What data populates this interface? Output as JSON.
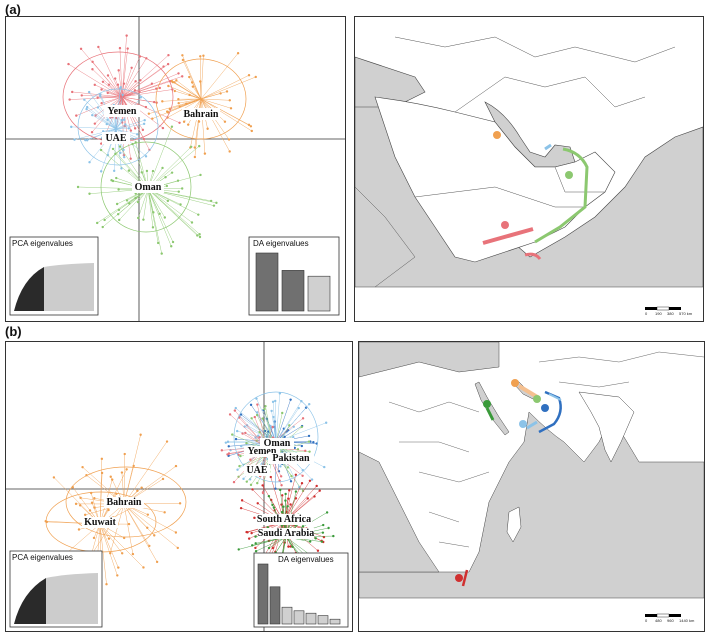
{
  "panels": [
    {
      "label": "(a)",
      "group_labels": [
        "Yemen",
        "Bahrain",
        "UAE",
        "Oman"
      ],
      "pca_inset_title": "PCA eigenvalues",
      "da_inset_title": "DA eigenvalues",
      "da_bars_fraction": [
        1.0,
        0.7,
        0.6
      ],
      "map_scale_labels": [
        "0",
        "190",
        "380",
        "570 km"
      ],
      "colors": {
        "Yemen": "#e8737a",
        "Bahrain": "#f0a050",
        "UAE": "#8cc3e8",
        "Oman": "#8cc870"
      }
    },
    {
      "label": "(b)",
      "group_labels": [
        "Oman",
        "Yemen",
        "Pakistan",
        "UAE",
        "Bahrain",
        "Kuwait",
        "South Africa",
        "Saudi Arabia"
      ],
      "pca_inset_title": "PCA eigenvalues",
      "da_inset_title": "DA eigenvalues",
      "da_bars_fraction": [
        1.0,
        0.62,
        0.28,
        0.22,
        0.18,
        0.14,
        0.08
      ],
      "map_scale_labels": [
        "0",
        "480",
        "960",
        "1440 km"
      ],
      "colors": {
        "Oman": "#8cc870",
        "Yemen": "#e8737a",
        "Pakistan": "#3070c0",
        "UAE": "#8cc3e8",
        "Bahrain": "#f0a050",
        "Kuwait": "#f0a050",
        "South Africa": "#d03030",
        "Saudi Arabia": "#3a9a3a"
      }
    }
  ]
}
